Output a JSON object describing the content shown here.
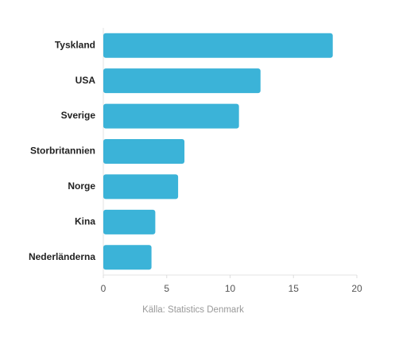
{
  "chart_data": {
    "type": "hbar",
    "categories": [
      "Tyskland",
      "USA",
      "Sverige",
      "Storbritannien",
      "Norge",
      "Kina",
      "Nederländerna"
    ],
    "values": [
      18.1,
      12.4,
      10.7,
      6.4,
      5.9,
      4.1,
      3.8
    ],
    "color": "#3bb3d8",
    "xlim": [
      0,
      20
    ],
    "xticks": [
      0,
      5,
      10,
      15,
      20
    ],
    "grid": false,
    "source": "Källa: Statistics Denmark"
  }
}
